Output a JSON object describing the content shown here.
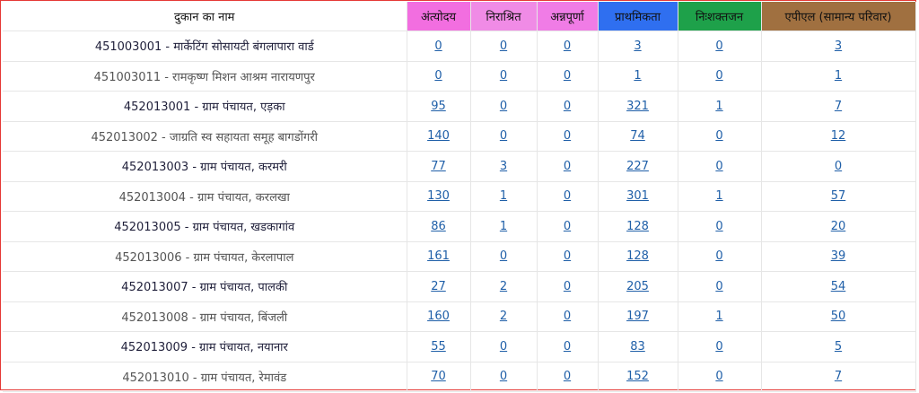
{
  "headers": [
    {
      "label": "दुकान का नाम",
      "bg": "#ffffff"
    },
    {
      "label": "अंत्योदय",
      "bg": "#f26ee0"
    },
    {
      "label": "निराश्रित",
      "bg": "#f08be6"
    },
    {
      "label": "अन्नपूर्णा",
      "bg": "#f07ce6"
    },
    {
      "label": "प्राथमिकता",
      "bg": "#2f6ff0"
    },
    {
      "label": "निःशक्तजन",
      "bg": "#1ea14a"
    },
    {
      "label": "एपीएल (सामान्य परिवार)",
      "bg": "#a07040"
    }
  ],
  "rows": [
    {
      "name": "451003001 - मार्केटिंग सोसायटी बंगलापारा वार्ड",
      "values": [
        "0",
        "0",
        "0",
        "3",
        "0",
        "3"
      ]
    },
    {
      "name": "451003011 - रामकृष्ण मिशन आश्रम नारायणपुर",
      "values": [
        "0",
        "0",
        "0",
        "1",
        "0",
        "1"
      ]
    },
    {
      "name": "452013001 - ग्राम पंचायत, एड़का",
      "values": [
        "95",
        "0",
        "0",
        "321",
        "1",
        "7"
      ]
    },
    {
      "name": "452013002 - जाग्रति स्व सहायता समूह बागडोंगरी",
      "values": [
        "140",
        "0",
        "0",
        "74",
        "0",
        "12"
      ]
    },
    {
      "name": "452013003 - ग्राम पंचायत, करमरी",
      "values": [
        "77",
        "3",
        "0",
        "227",
        "0",
        "0"
      ]
    },
    {
      "name": "452013004 - ग्राम पंचायत, करलखा",
      "values": [
        "130",
        "1",
        "0",
        "301",
        "1",
        "57"
      ]
    },
    {
      "name": "452013005 - ग्राम पंचायत, खडकागांव",
      "values": [
        "86",
        "1",
        "0",
        "128",
        "0",
        "20"
      ]
    },
    {
      "name": "452013006 - ग्राम पंचायत, केरलापाल",
      "values": [
        "161",
        "0",
        "0",
        "128",
        "0",
        "39"
      ]
    },
    {
      "name": "452013007 - ग्राम पंचायत, पालकी",
      "values": [
        "27",
        "2",
        "0",
        "205",
        "0",
        "54"
      ]
    },
    {
      "name": "452013008 - ग्राम पंचायत, बिंजली",
      "values": [
        "160",
        "2",
        "0",
        "197",
        "1",
        "50"
      ]
    },
    {
      "name": "452013009 - ग्राम पंचायत, नयानार",
      "values": [
        "55",
        "0",
        "0",
        "83",
        "0",
        "5"
      ]
    },
    {
      "name": "452013010 - ग्राम पंचायत, रेमावंड",
      "values": [
        "70",
        "0",
        "0",
        "152",
        "0",
        "7"
      ]
    }
  ]
}
